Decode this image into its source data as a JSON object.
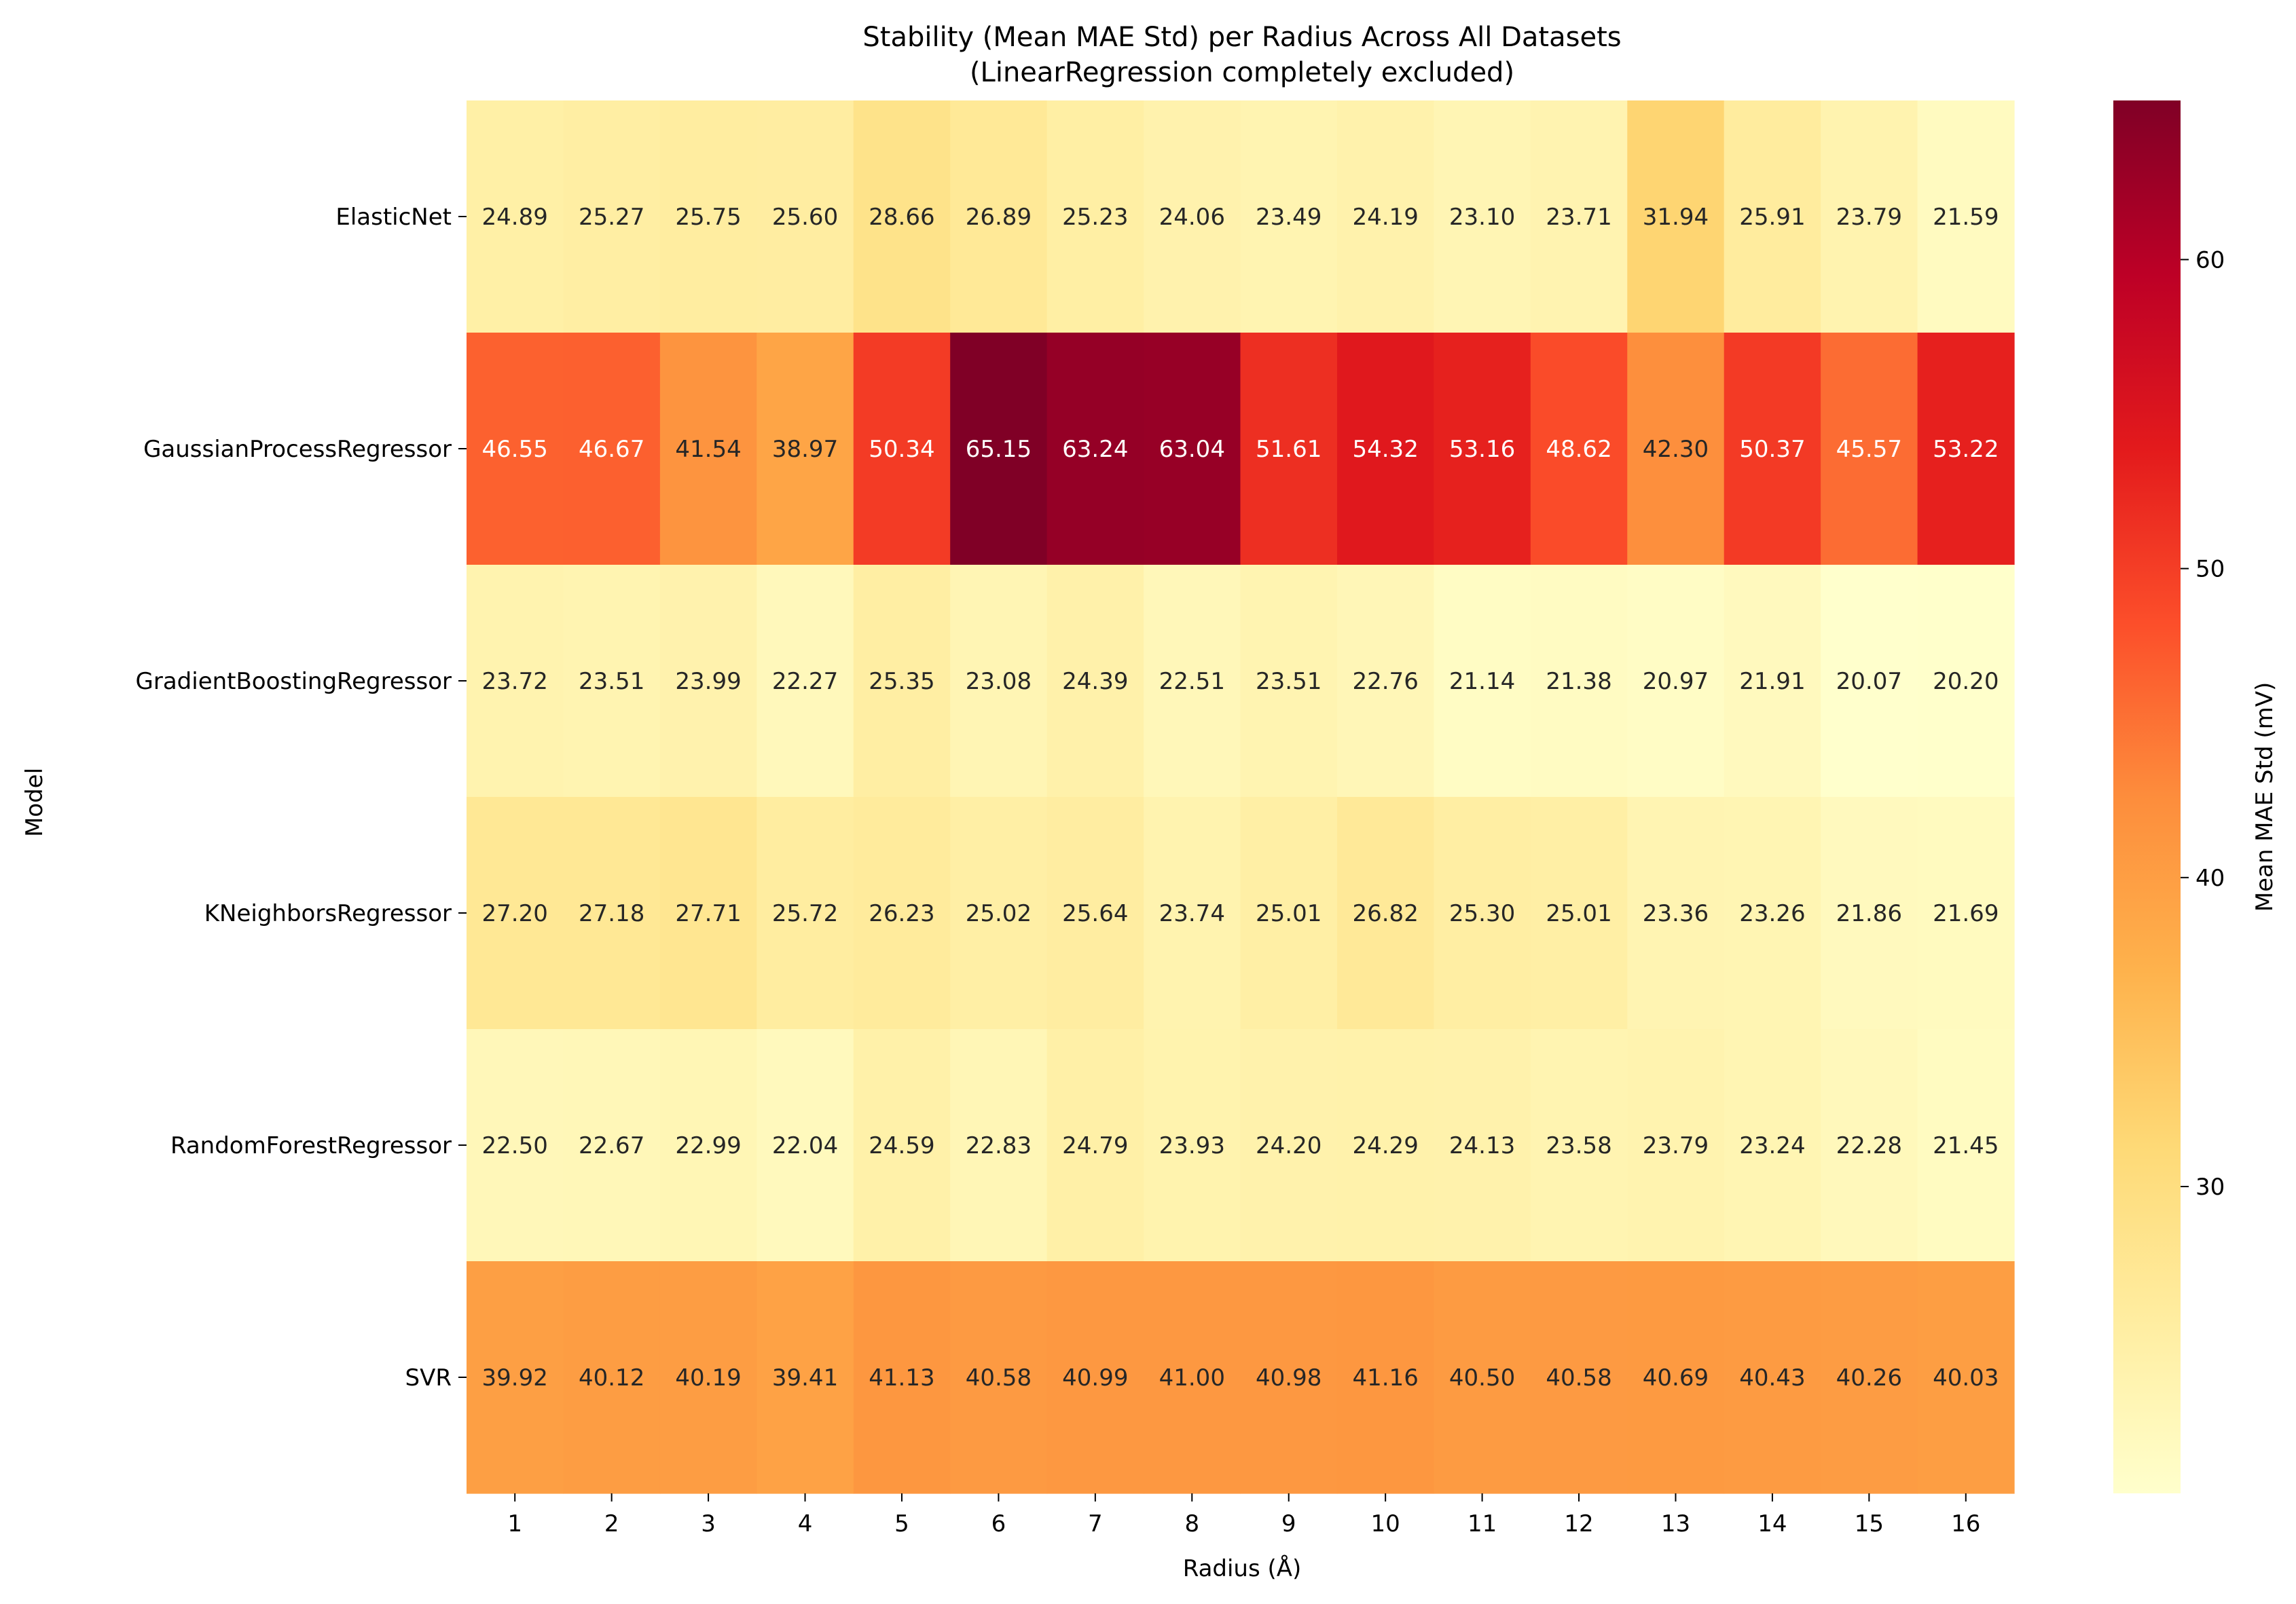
{
  "chart_data": {
    "type": "heatmap",
    "title": "Stability (Mean MAE Std) per Radius Across All Datasets",
    "subtitle": "(LinearRegression completely excluded)",
    "xlabel": "Radius (Å)",
    "ylabel": "Model",
    "colorbar_label": "Mean MAE Std (mV)",
    "colormap": "YlOrRd",
    "color_range": [
      20.07,
      65.15
    ],
    "colorbar_ticks": [
      30,
      40,
      50,
      60
    ],
    "colorbar_ticks_text": [
      "30",
      "40",
      "50",
      "60"
    ],
    "x": [
      "1",
      "2",
      "3",
      "4",
      "5",
      "6",
      "7",
      "8",
      "9",
      "10",
      "11",
      "12",
      "13",
      "14",
      "15",
      "16"
    ],
    "y": [
      "ElasticNet",
      "GaussianProcessRegressor",
      "GradientBoostingRegressor",
      "KNeighborsRegressor",
      "RandomForestRegressor",
      "SVR"
    ],
    "values": [
      [
        24.89,
        25.27,
        25.75,
        25.6,
        28.66,
        26.89,
        25.23,
        24.06,
        23.49,
        24.19,
        23.1,
        23.71,
        31.94,
        25.91,
        23.79,
        21.59
      ],
      [
        46.55,
        46.67,
        41.54,
        38.97,
        50.34,
        65.15,
        63.24,
        63.04,
        51.61,
        54.32,
        53.16,
        48.62,
        42.3,
        50.37,
        45.57,
        53.22
      ],
      [
        23.72,
        23.51,
        23.99,
        22.27,
        25.35,
        23.08,
        24.39,
        22.51,
        23.51,
        22.76,
        21.14,
        21.38,
        20.97,
        21.91,
        20.07,
        20.2
      ],
      [
        27.2,
        27.18,
        27.71,
        25.72,
        26.23,
        25.02,
        25.64,
        23.74,
        25.01,
        26.82,
        25.3,
        25.01,
        23.36,
        23.26,
        21.86,
        21.69
      ],
      [
        22.5,
        22.67,
        22.99,
        22.04,
        24.59,
        22.83,
        24.79,
        23.93,
        24.2,
        24.29,
        24.13,
        23.58,
        23.79,
        23.24,
        22.28,
        21.45
      ],
      [
        39.92,
        40.12,
        40.19,
        39.41,
        41.13,
        40.58,
        40.99,
        41.0,
        40.98,
        41.16,
        40.5,
        40.58,
        40.69,
        40.43,
        40.26,
        40.03
      ]
    ],
    "values_text": [
      [
        "24.89",
        "25.27",
        "25.75",
        "25.60",
        "28.66",
        "26.89",
        "25.23",
        "24.06",
        "23.49",
        "24.19",
        "23.10",
        "23.71",
        "31.94",
        "25.91",
        "23.79",
        "21.59"
      ],
      [
        "46.55",
        "46.67",
        "41.54",
        "38.97",
        "50.34",
        "65.15",
        "63.24",
        "63.04",
        "51.61",
        "54.32",
        "53.16",
        "48.62",
        "42.30",
        "50.37",
        "45.57",
        "53.22"
      ],
      [
        "23.72",
        "23.51",
        "23.99",
        "22.27",
        "25.35",
        "23.08",
        "24.39",
        "22.51",
        "23.51",
        "22.76",
        "21.14",
        "21.38",
        "20.97",
        "21.91",
        "20.07",
        "20.20"
      ],
      [
        "27.20",
        "27.18",
        "27.71",
        "25.72",
        "26.23",
        "25.02",
        "25.64",
        "23.74",
        "25.01",
        "26.82",
        "25.30",
        "25.01",
        "23.36",
        "23.26",
        "21.86",
        "21.69"
      ],
      [
        "22.50",
        "22.67",
        "22.99",
        "22.04",
        "24.59",
        "22.83",
        "24.79",
        "23.93",
        "24.20",
        "24.29",
        "24.13",
        "23.58",
        "23.79",
        "23.24",
        "22.28",
        "21.45"
      ],
      [
        "39.92",
        "40.12",
        "40.19",
        "39.41",
        "41.13",
        "40.58",
        "40.99",
        "41.00",
        "40.98",
        "41.16",
        "40.50",
        "40.58",
        "40.69",
        "40.43",
        "40.26",
        "40.03"
      ]
    ],
    "annotation_text_colors": [
      "#262626",
      "#ffffff"
    ]
  }
}
